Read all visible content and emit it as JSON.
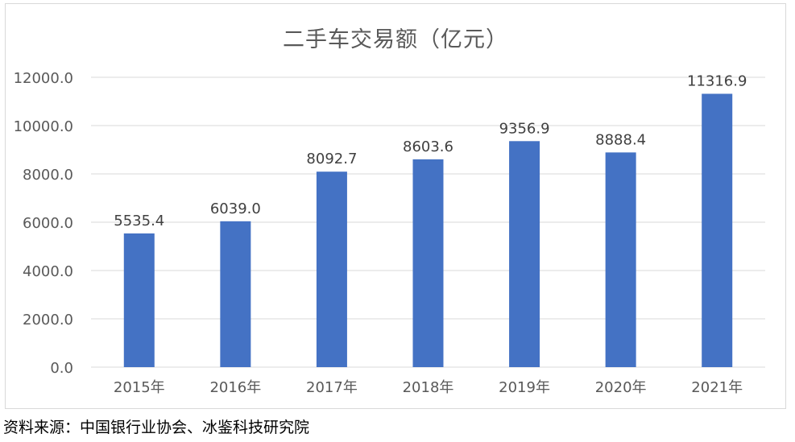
{
  "chart_data": {
    "type": "bar",
    "title": "二手车交易额（亿元）",
    "categories": [
      "2015年",
      "2016年",
      "2017年",
      "2018年",
      "2019年",
      "2020年",
      "2021年"
    ],
    "values": [
      5535.4,
      6039.0,
      8092.7,
      8603.6,
      9356.9,
      8888.4,
      11316.9
    ],
    "value_labels": [
      "5535.4",
      "6039.0",
      "8092.7",
      "8603.6",
      "9356.9",
      "8888.4",
      "11316.9"
    ],
    "y_ticks": [
      "0.0",
      "2000.0",
      "4000.0",
      "6000.0",
      "8000.0",
      "10000.0",
      "12000.0"
    ],
    "ylim": [
      0,
      12000
    ],
    "grid": true,
    "legend": "none",
    "bar_color": "#4472c4"
  },
  "source": "资料来源：中国银行业协会、冰鉴科技研究院"
}
